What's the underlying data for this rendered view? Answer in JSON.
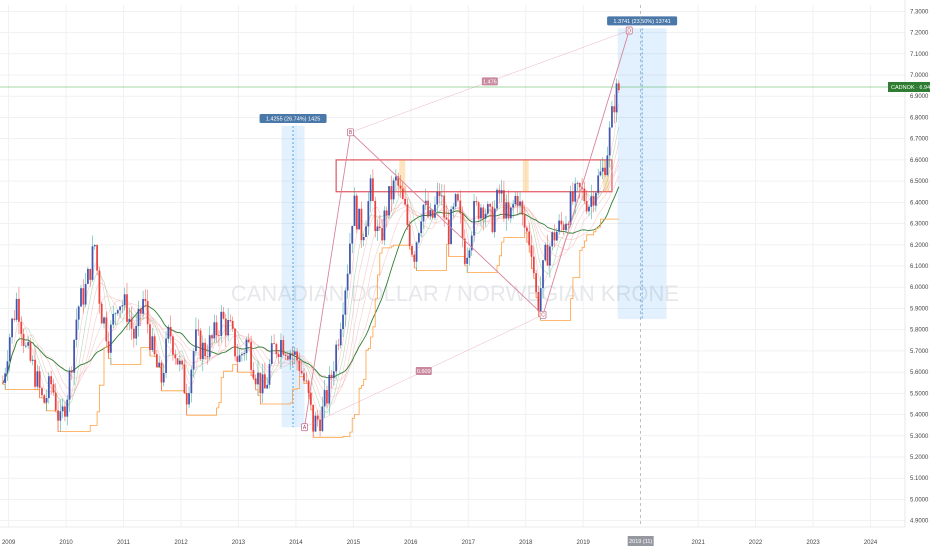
{
  "chart_data": {
    "type": "candlestick",
    "symbol": "CADNOK",
    "watermark": "CANADIAN DOLLAR / NORWEGIAN KRONE",
    "last_price": "6.9436",
    "y_ticks": [
      "4.9000",
      "5.0000",
      "5.1000",
      "5.2000",
      "5.3000",
      "5.4000",
      "5.5000",
      "5.6000",
      "5.7000",
      "5.8000",
      "5.9000",
      "6.0000",
      "6.1000",
      "6.2000",
      "6.3000",
      "6.4000",
      "6.5000",
      "6.6000",
      "6.7000",
      "6.8000",
      "6.9000",
      "7.0000",
      "7.1000",
      "7.2000",
      "7.3000"
    ],
    "x_ticks": [
      "2009",
      "2010",
      "2011",
      "2012",
      "2013",
      "2014",
      "2015",
      "2016",
      "2017",
      "2018",
      "2019",
      "2021",
      "2022",
      "2023",
      "2024"
    ],
    "x_highlight_label": "2019 (11)",
    "ylim": [
      4.87,
      7.33
    ],
    "x_range": [
      2008.85,
      2024.6
    ],
    "grid": true,
    "close_series": [
      [
        2008.9,
        5.55
      ],
      [
        2009.0,
        5.75
      ],
      [
        2009.15,
        5.95
      ],
      [
        2009.3,
        5.7
      ],
      [
        2009.45,
        5.6
      ],
      [
        2009.6,
        5.45
      ],
      [
        2009.75,
        5.55
      ],
      [
        2009.9,
        5.35
      ],
      [
        2010.05,
        5.55
      ],
      [
        2010.2,
        5.9
      ],
      [
        2010.35,
        6.0
      ],
      [
        2010.5,
        6.2
      ],
      [
        2010.6,
        5.9
      ],
      [
        2010.75,
        5.75
      ],
      [
        2010.9,
        5.95
      ],
      [
        2011.05,
        5.9
      ],
      [
        2011.2,
        5.75
      ],
      [
        2011.35,
        5.95
      ],
      [
        2011.5,
        5.7
      ],
      [
        2011.65,
        5.55
      ],
      [
        2011.8,
        5.8
      ],
      [
        2011.95,
        5.65
      ],
      [
        2012.1,
        5.5
      ],
      [
        2012.25,
        5.75
      ],
      [
        2012.4,
        5.7
      ],
      [
        2012.55,
        5.75
      ],
      [
        2012.7,
        5.85
      ],
      [
        2012.85,
        5.8
      ],
      [
        2013.0,
        5.65
      ],
      [
        2013.15,
        5.75
      ],
      [
        2013.3,
        5.6
      ],
      [
        2013.45,
        5.5
      ],
      [
        2013.6,
        5.7
      ],
      [
        2013.75,
        5.75
      ],
      [
        2013.9,
        5.7
      ],
      [
        2014.05,
        5.65
      ],
      [
        2014.2,
        5.5
      ],
      [
        2014.3,
        5.35
      ],
      [
        2014.45,
        5.4
      ],
      [
        2014.6,
        5.55
      ],
      [
        2014.75,
        5.8
      ],
      [
        2014.9,
        6.1
      ],
      [
        2015.0,
        6.4
      ],
      [
        2015.15,
        6.25
      ],
      [
        2015.3,
        6.45
      ],
      [
        2015.45,
        6.2
      ],
      [
        2015.6,
        6.4
      ],
      [
        2015.75,
        6.5
      ],
      [
        2015.9,
        6.35
      ],
      [
        2016.05,
        6.15
      ],
      [
        2016.2,
        6.4
      ],
      [
        2016.35,
        6.3
      ],
      [
        2016.5,
        6.45
      ],
      [
        2016.65,
        6.25
      ],
      [
        2016.8,
        6.4
      ],
      [
        2016.95,
        6.15
      ],
      [
        2017.1,
        6.35
      ],
      [
        2017.25,
        6.4
      ],
      [
        2017.4,
        6.3
      ],
      [
        2017.55,
        6.45
      ],
      [
        2017.7,
        6.3
      ],
      [
        2017.85,
        6.45
      ],
      [
        2017.95,
        6.3
      ],
      [
        2018.1,
        6.2
      ],
      [
        2018.2,
        5.9
      ],
      [
        2018.35,
        6.15
      ],
      [
        2018.5,
        6.25
      ],
      [
        2018.65,
        6.3
      ],
      [
        2018.8,
        6.4
      ],
      [
        2018.95,
        6.45
      ],
      [
        2019.1,
        6.4
      ],
      [
        2019.25,
        6.5
      ],
      [
        2019.35,
        6.55
      ],
      [
        2019.45,
        6.7
      ],
      [
        2019.55,
        6.9
      ],
      [
        2019.65,
        6.95
      ]
    ],
    "fib_drawing": {
      "points": [
        {
          "label": "A",
          "x": 2014.15,
          "y": 5.34
        },
        {
          "label": "B",
          "x": 2014.95,
          "y": 6.73
        },
        {
          "label": "C",
          "x": 2018.3,
          "y": 5.87
        },
        {
          "label": "D",
          "x": 2019.8,
          "y": 7.21
        }
      ],
      "ratios": [
        "1.476",
        "0.609"
      ]
    },
    "measures": [
      {
        "label": "1.4255 (26.74%) 1425",
        "x0": 2013.75,
        "x1": 2014.15,
        "y0": 5.34,
        "y1": 6.76
      },
      {
        "label": "1.3741 (23.50%) 13741",
        "x0": 2019.6,
        "x1": 2020.45,
        "y0": 5.85,
        "y1": 7.22
      }
    ],
    "resistance_box": {
      "x0": 2014.7,
      "x1": 2019.5,
      "y0": 6.45,
      "y1": 6.6
    }
  }
}
